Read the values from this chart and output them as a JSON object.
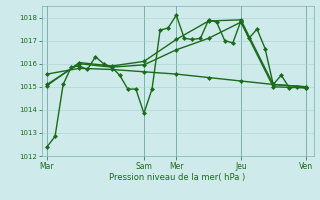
{
  "bg_color": "#ceeaea",
  "line_color": "#1a6b1a",
  "grid_color": "#a8d0d0",
  "xlabel": "Pression niveau de la mer( hPa )",
  "ylim": [
    1012,
    1018.5
  ],
  "yticks": [
    1012,
    1013,
    1014,
    1015,
    1016,
    1017,
    1018
  ],
  "day_labels": [
    "Mar",
    "Sam",
    "Mer",
    "Jeu",
    "Ven"
  ],
  "day_positions": [
    0,
    72,
    96,
    144,
    192
  ],
  "xlim": [
    -4,
    198
  ],
  "series": [
    {
      "x": [
        0,
        6,
        12,
        18,
        24,
        30,
        36,
        42,
        48,
        54,
        60,
        66,
        72,
        78,
        84,
        90,
        96,
        102,
        108,
        114,
        120,
        126,
        132,
        138,
        144,
        150,
        156,
        162,
        168,
        174,
        180,
        186,
        192
      ],
      "y": [
        1012.4,
        1012.85,
        1015.1,
        1015.85,
        1015.9,
        1015.75,
        1016.3,
        1016.0,
        1015.85,
        1015.5,
        1014.9,
        1014.9,
        1013.85,
        1014.9,
        1017.45,
        1017.55,
        1018.1,
        1017.1,
        1017.05,
        1017.1,
        1017.9,
        1017.8,
        1017.0,
        1016.9,
        1017.85,
        1017.1,
        1017.5,
        1016.65,
        1015.1,
        1015.5,
        1014.95,
        1015.0,
        1014.95
      ],
      "marker": "D",
      "markersize": 2.0,
      "linewidth": 1.0,
      "linestyle": "-"
    },
    {
      "x": [
        0,
        24,
        48,
        72,
        96,
        120,
        144,
        168,
        192
      ],
      "y": [
        1015.55,
        1015.8,
        1015.75,
        1015.65,
        1015.55,
        1015.4,
        1015.25,
        1015.1,
        1015.0
      ],
      "marker": "D",
      "markersize": 2.0,
      "linewidth": 1.0,
      "linestyle": "-"
    },
    {
      "x": [
        0,
        24,
        48,
        72,
        96,
        120,
        144,
        168,
        192
      ],
      "y": [
        1015.1,
        1016.0,
        1015.85,
        1015.95,
        1016.6,
        1017.1,
        1017.8,
        1015.0,
        1014.95
      ],
      "marker": "D",
      "markersize": 2.0,
      "linewidth": 1.0,
      "linestyle": "-"
    },
    {
      "x": [
        0,
        24,
        48,
        72,
        96,
        120,
        144,
        168,
        192
      ],
      "y": [
        1015.05,
        1016.05,
        1015.9,
        1016.1,
        1017.05,
        1017.85,
        1017.9,
        1015.1,
        1015.0
      ],
      "marker": "D",
      "markersize": 2.0,
      "linewidth": 1.0,
      "linestyle": "-"
    }
  ]
}
